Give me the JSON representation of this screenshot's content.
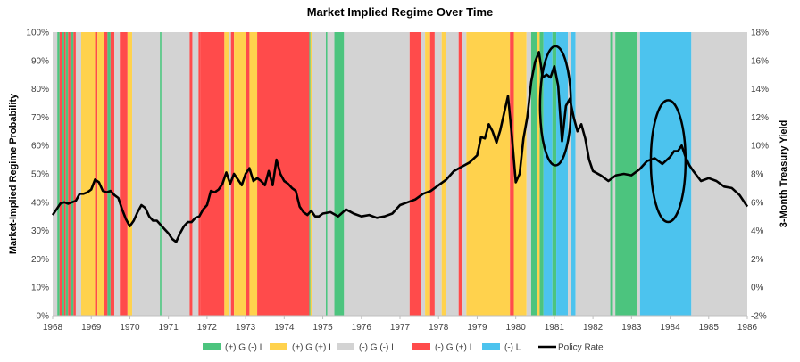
{
  "chart_data": {
    "type": "area",
    "title": "Market Implied Regime Over Time",
    "ylabel": "Market-Implied Regime Probability",
    "y2label": "3-Month Treasury Yield",
    "xlim": [
      1968,
      1986
    ],
    "ylim": [
      0,
      100
    ],
    "y2lim": [
      -2,
      18
    ],
    "x_ticks": [
      "1968",
      "1969",
      "1970",
      "1971",
      "1972",
      "1973",
      "1974",
      "1975",
      "1976",
      "1977",
      "1978",
      "1979",
      "1980",
      "1981",
      "1982",
      "1983",
      "1984",
      "1985",
      "1986"
    ],
    "y_ticks": [
      "0%",
      "10%",
      "20%",
      "30%",
      "40%",
      "50%",
      "60%",
      "70%",
      "80%",
      "90%",
      "100%"
    ],
    "y2_ticks": [
      "-2%",
      "0%",
      "2%",
      "4%",
      "6%",
      "8%",
      "10%",
      "12%",
      "14%",
      "16%",
      "18%"
    ],
    "grid": false,
    "legend_position": "bottom",
    "regimes": [
      {
        "key": "g_pos_i_neg",
        "name": "(+) G (-) I",
        "color": "#4cc47e"
      },
      {
        "key": "g_pos_i_pos",
        "name": "(+) G (+) I",
        "color": "#ffd24d"
      },
      {
        "key": "g_neg_i_neg",
        "name": "(-) G (-) I",
        "color": "#d3d3d3"
      },
      {
        "key": "g_neg_i_pos",
        "name": "(-) G (+) I",
        "color": "#ff4b4b"
      },
      {
        "key": "l_neg",
        "name": "(-) L",
        "color": "#4cc3ee"
      }
    ],
    "regime_periods": [
      {
        "start": 1968.0,
        "end": 1968.12,
        "regime": "g_neg_i_neg"
      },
      {
        "start": 1968.12,
        "end": 1968.18,
        "regime": "g_pos_i_neg"
      },
      {
        "start": 1968.18,
        "end": 1968.24,
        "regime": "g_neg_i_pos"
      },
      {
        "start": 1968.24,
        "end": 1968.3,
        "regime": "g_pos_i_neg"
      },
      {
        "start": 1968.3,
        "end": 1968.34,
        "regime": "g_neg_i_pos"
      },
      {
        "start": 1968.34,
        "end": 1968.4,
        "regime": "g_pos_i_neg"
      },
      {
        "start": 1968.4,
        "end": 1968.46,
        "regime": "g_neg_i_pos"
      },
      {
        "start": 1968.46,
        "end": 1968.54,
        "regime": "g_pos_i_neg"
      },
      {
        "start": 1968.54,
        "end": 1968.6,
        "regime": "g_neg_i_pos"
      },
      {
        "start": 1968.6,
        "end": 1968.74,
        "regime": "g_neg_i_neg"
      },
      {
        "start": 1968.74,
        "end": 1969.1,
        "regime": "g_pos_i_pos"
      },
      {
        "start": 1969.1,
        "end": 1969.16,
        "regime": "g_neg_i_pos"
      },
      {
        "start": 1969.16,
        "end": 1969.32,
        "regime": "g_pos_i_pos"
      },
      {
        "start": 1969.32,
        "end": 1969.42,
        "regime": "g_neg_i_pos"
      },
      {
        "start": 1969.42,
        "end": 1969.5,
        "regime": "g_pos_i_neg"
      },
      {
        "start": 1969.5,
        "end": 1969.6,
        "regime": "g_neg_i_pos"
      },
      {
        "start": 1969.6,
        "end": 1969.74,
        "regime": "g_neg_i_neg"
      },
      {
        "start": 1969.74,
        "end": 1969.94,
        "regime": "g_neg_i_pos"
      },
      {
        "start": 1969.94,
        "end": 1970.06,
        "regime": "g_pos_i_pos"
      },
      {
        "start": 1970.06,
        "end": 1970.78,
        "regime": "g_neg_i_neg"
      },
      {
        "start": 1970.78,
        "end": 1970.82,
        "regime": "g_pos_i_neg"
      },
      {
        "start": 1970.82,
        "end": 1971.55,
        "regime": "g_neg_i_neg"
      },
      {
        "start": 1971.55,
        "end": 1971.62,
        "regime": "g_neg_i_pos"
      },
      {
        "start": 1971.62,
        "end": 1971.78,
        "regime": "g_neg_i_neg"
      },
      {
        "start": 1971.78,
        "end": 1971.82,
        "regime": "g_neg_i_pos"
      },
      {
        "start": 1971.82,
        "end": 1972.45,
        "regime": "g_neg_i_pos"
      },
      {
        "start": 1972.45,
        "end": 1972.58,
        "regime": "g_pos_i_pos"
      },
      {
        "start": 1972.58,
        "end": 1972.62,
        "regime": "g_neg_i_neg"
      },
      {
        "start": 1972.62,
        "end": 1972.7,
        "regime": "g_neg_i_pos"
      },
      {
        "start": 1972.7,
        "end": 1973.0,
        "regime": "g_pos_i_pos"
      },
      {
        "start": 1973.0,
        "end": 1973.1,
        "regime": "g_neg_i_pos"
      },
      {
        "start": 1973.1,
        "end": 1973.3,
        "regime": "g_pos_i_pos"
      },
      {
        "start": 1973.3,
        "end": 1974.65,
        "regime": "g_neg_i_pos"
      },
      {
        "start": 1974.65,
        "end": 1974.68,
        "regime": "g_pos_i_neg"
      },
      {
        "start": 1974.68,
        "end": 1974.72,
        "regime": "g_pos_i_pos"
      },
      {
        "start": 1974.72,
        "end": 1975.08,
        "regime": "g_neg_i_neg"
      },
      {
        "start": 1975.08,
        "end": 1975.12,
        "regime": "g_pos_i_neg"
      },
      {
        "start": 1975.12,
        "end": 1975.3,
        "regime": "g_neg_i_neg"
      },
      {
        "start": 1975.3,
        "end": 1975.55,
        "regime": "g_pos_i_neg"
      },
      {
        "start": 1975.55,
        "end": 1977.25,
        "regime": "g_neg_i_neg"
      },
      {
        "start": 1977.25,
        "end": 1977.55,
        "regime": "g_neg_i_pos"
      },
      {
        "start": 1977.55,
        "end": 1977.65,
        "regime": "g_neg_i_neg"
      },
      {
        "start": 1977.65,
        "end": 1977.78,
        "regime": "g_pos_i_pos"
      },
      {
        "start": 1977.78,
        "end": 1977.9,
        "regime": "g_neg_i_pos"
      },
      {
        "start": 1977.9,
        "end": 1978.08,
        "regime": "g_neg_i_neg"
      },
      {
        "start": 1978.08,
        "end": 1978.2,
        "regime": "g_pos_i_pos"
      },
      {
        "start": 1978.2,
        "end": 1978.52,
        "regime": "g_neg_i_neg"
      },
      {
        "start": 1978.52,
        "end": 1978.62,
        "regime": "g_neg_i_pos"
      },
      {
        "start": 1978.62,
        "end": 1978.72,
        "regime": "g_neg_i_neg"
      },
      {
        "start": 1978.72,
        "end": 1979.85,
        "regime": "g_pos_i_pos"
      },
      {
        "start": 1979.85,
        "end": 1979.95,
        "regime": "g_neg_i_pos"
      },
      {
        "start": 1979.95,
        "end": 1980.28,
        "regime": "g_pos_i_pos"
      },
      {
        "start": 1980.28,
        "end": 1980.4,
        "regime": "g_neg_i_neg"
      },
      {
        "start": 1980.4,
        "end": 1980.55,
        "regime": "g_pos_i_neg"
      },
      {
        "start": 1980.55,
        "end": 1980.62,
        "regime": "g_pos_i_pos"
      },
      {
        "start": 1980.62,
        "end": 1980.72,
        "regime": "g_pos_i_neg"
      },
      {
        "start": 1980.72,
        "end": 1980.95,
        "regime": "l_neg"
      },
      {
        "start": 1980.95,
        "end": 1981.05,
        "regime": "g_pos_i_neg"
      },
      {
        "start": 1981.05,
        "end": 1981.35,
        "regime": "l_neg"
      },
      {
        "start": 1981.35,
        "end": 1981.42,
        "regime": "g_neg_i_neg"
      },
      {
        "start": 1981.42,
        "end": 1981.55,
        "regime": "l_neg"
      },
      {
        "start": 1981.55,
        "end": 1982.45,
        "regime": "g_neg_i_neg"
      },
      {
        "start": 1982.45,
        "end": 1982.52,
        "regime": "g_pos_i_neg"
      },
      {
        "start": 1982.52,
        "end": 1982.58,
        "regime": "g_neg_i_neg"
      },
      {
        "start": 1982.58,
        "end": 1983.15,
        "regime": "g_pos_i_neg"
      },
      {
        "start": 1983.15,
        "end": 1983.22,
        "regime": "g_neg_i_neg"
      },
      {
        "start": 1983.22,
        "end": 1984.55,
        "regime": "l_neg"
      },
      {
        "start": 1984.55,
        "end": 1986.0,
        "regime": "g_neg_i_neg"
      }
    ],
    "series": [
      {
        "name": "Policy Rate",
        "color": "#000000",
        "axis": "right",
        "x": [
          1968.0,
          1968.1,
          1968.2,
          1968.3,
          1968.4,
          1968.5,
          1968.6,
          1968.7,
          1968.8,
          1968.9,
          1969.0,
          1969.1,
          1969.2,
          1969.3,
          1969.4,
          1969.5,
          1969.6,
          1969.7,
          1969.8,
          1969.9,
          1970.0,
          1970.1,
          1970.2,
          1970.3,
          1970.4,
          1970.5,
          1970.6,
          1970.7,
          1970.8,
          1970.9,
          1971.0,
          1971.1,
          1971.2,
          1971.3,
          1971.4,
          1971.5,
          1971.6,
          1971.7,
          1971.8,
          1971.9,
          1972.0,
          1972.1,
          1972.2,
          1972.3,
          1972.4,
          1972.5,
          1972.6,
          1972.7,
          1972.8,
          1972.9,
          1973.0,
          1973.1,
          1973.2,
          1973.3,
          1973.4,
          1973.5,
          1973.6,
          1973.7,
          1973.8,
          1973.9,
          1974.0,
          1974.1,
          1974.2,
          1974.3,
          1974.4,
          1974.5,
          1974.6,
          1974.7,
          1974.8,
          1974.9,
          1975.0,
          1975.2,
          1975.4,
          1975.6,
          1975.8,
          1976.0,
          1976.2,
          1976.4,
          1976.6,
          1976.8,
          1977.0,
          1977.2,
          1977.4,
          1977.6,
          1977.8,
          1978.0,
          1978.2,
          1978.4,
          1978.6,
          1978.8,
          1979.0,
          1979.1,
          1979.2,
          1979.3,
          1979.4,
          1979.5,
          1979.6,
          1979.7,
          1979.8,
          1979.9,
          1980.0,
          1980.1,
          1980.2,
          1980.3,
          1980.4,
          1980.5,
          1980.6,
          1980.7,
          1980.8,
          1980.9,
          1981.0,
          1981.1,
          1981.2,
          1981.3,
          1981.4,
          1981.5,
          1981.6,
          1981.7,
          1981.8,
          1981.9,
          1982.0,
          1982.2,
          1982.4,
          1982.6,
          1982.8,
          1983.0,
          1983.2,
          1983.4,
          1983.6,
          1983.8,
          1984.0,
          1984.1,
          1984.2,
          1984.3,
          1984.4,
          1984.5,
          1984.6,
          1984.8,
          1985.0,
          1985.2,
          1985.4,
          1985.6,
          1985.8,
          1986.0
        ],
        "y": [
          5.1,
          5.5,
          5.9,
          6.0,
          5.9,
          6.0,
          6.1,
          6.6,
          6.6,
          6.7,
          6.9,
          7.6,
          7.4,
          6.8,
          6.7,
          6.8,
          6.5,
          6.3,
          5.5,
          4.8,
          4.3,
          4.7,
          5.3,
          5.8,
          5.6,
          5.0,
          4.7,
          4.7,
          4.4,
          4.1,
          3.8,
          3.4,
          3.2,
          3.8,
          4.3,
          4.6,
          4.6,
          4.9,
          5.0,
          5.5,
          5.8,
          6.8,
          6.7,
          6.9,
          7.3,
          8.1,
          7.3,
          8.0,
          7.6,
          7.2,
          8.0,
          8.4,
          7.5,
          7.7,
          7.5,
          7.2,
          8.2,
          7.2,
          9.0,
          8.0,
          7.5,
          7.3,
          7.0,
          6.8,
          5.7,
          5.3,
          5.1,
          5.4,
          5.0,
          5.0,
          5.2,
          5.3,
          5.0,
          5.5,
          5.2,
          5.0,
          5.1,
          4.9,
          5.0,
          5.2,
          5.8,
          6.0,
          6.2,
          6.6,
          6.8,
          7.2,
          7.6,
          8.2,
          8.5,
          8.8,
          9.3,
          10.6,
          10.5,
          11.5,
          11.0,
          10.2,
          11.1,
          12.3,
          13.5,
          10.7,
          7.4,
          8.0,
          10.5,
          12.0,
          14.5,
          15.9,
          16.6,
          14.8,
          15.0,
          14.8,
          15.6,
          14.2,
          10.3,
          12.8,
          13.3,
          12.0,
          11.0,
          11.5,
          10.5,
          9.0,
          8.2,
          7.9,
          7.5,
          7.9,
          8.0,
          7.9,
          8.3,
          8.9,
          9.1,
          8.7,
          9.2,
          9.6,
          9.6,
          10.0,
          9.2,
          8.6,
          8.2,
          7.5,
          7.7,
          7.5,
          7.1,
          7.0,
          6.5,
          5.7
        ]
      }
    ],
    "annotations": [
      {
        "shape": "ellipse",
        "cx": 1981.03,
        "cy": 12.8,
        "rx": 0.4,
        "ry": 4.2
      },
      {
        "shape": "ellipse",
        "cx": 1983.95,
        "cy": 8.9,
        "rx": 0.45,
        "ry": 4.3
      }
    ]
  }
}
